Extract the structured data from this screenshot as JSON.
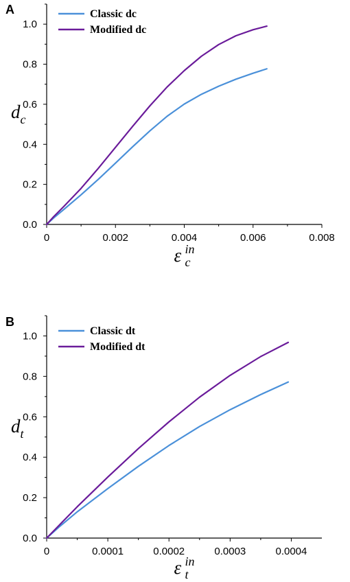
{
  "chart_data": [
    {
      "panel": "A",
      "type": "line",
      "xlim": [
        0,
        0.008
      ],
      "ylim": [
        0,
        1.1
      ],
      "x_ticks": [
        "0",
        "0.002",
        "0.004",
        "0.006",
        "0.008"
      ],
      "y_ticks": [
        "0.0",
        "0.2",
        "0.4",
        "0.6",
        "0.8",
        "1.0"
      ],
      "ylabel_main": "d",
      "ylabel_sub": "c",
      "xlabel_main": "ε",
      "xlabel_sub": "c",
      "xlabel_super": "in",
      "legend_position": "top-left",
      "grid": false,
      "series": [
        {
          "name": "Classic dc",
          "color": "#4a90d9",
          "x": [
            0,
            0.0002,
            0.0005,
            0.001,
            0.0015,
            0.002,
            0.0025,
            0.003,
            0.0035,
            0.004,
            0.0045,
            0.005,
            0.0055,
            0.006,
            0.0064
          ],
          "y": [
            0,
            0.032,
            0.075,
            0.148,
            0.225,
            0.306,
            0.388,
            0.467,
            0.54,
            0.601,
            0.65,
            0.69,
            0.725,
            0.755,
            0.777
          ]
        },
        {
          "name": "Modified dc",
          "color": "#6a1b9a",
          "x": [
            0,
            0.0002,
            0.0005,
            0.001,
            0.0015,
            0.002,
            0.0025,
            0.003,
            0.0035,
            0.004,
            0.0045,
            0.005,
            0.0055,
            0.006,
            0.0064
          ],
          "y": [
            0,
            0.038,
            0.09,
            0.18,
            0.28,
            0.385,
            0.49,
            0.592,
            0.686,
            0.768,
            0.84,
            0.898,
            0.942,
            0.972,
            0.99
          ]
        }
      ]
    },
    {
      "panel": "B",
      "type": "line",
      "xlim": [
        0,
        0.00045
      ],
      "ylim": [
        0,
        1.1
      ],
      "x_ticks": [
        "0",
        "0.0001",
        "0.0002",
        "0.0003",
        "0.0004"
      ],
      "y_ticks": [
        "0.0",
        "0.2",
        "0.4",
        "0.6",
        "0.8",
        "1.0"
      ],
      "ylabel_main": "d",
      "ylabel_sub": "t",
      "xlabel_main": "ε",
      "xlabel_sub": "t",
      "xlabel_super": "in",
      "legend_position": "top-left",
      "grid": false,
      "series": [
        {
          "name": "Classic dt",
          "color": "#4a90d9",
          "x": [
            0,
            2e-05,
            5e-05,
            0.0001,
            0.00015,
            0.0002,
            0.00025,
            0.0003,
            0.00035,
            0.000395
          ],
          "y": [
            0,
            0.054,
            0.13,
            0.245,
            0.355,
            0.458,
            0.552,
            0.635,
            0.71,
            0.772
          ]
        },
        {
          "name": "Modified dt",
          "color": "#6a1b9a",
          "x": [
            0,
            2e-05,
            5e-05,
            0.0001,
            0.00015,
            0.0002,
            0.00025,
            0.0003,
            0.00035,
            0.000395
          ],
          "y": [
            0,
            0.062,
            0.155,
            0.302,
            0.443,
            0.575,
            0.697,
            0.805,
            0.898,
            0.968
          ]
        }
      ]
    }
  ]
}
